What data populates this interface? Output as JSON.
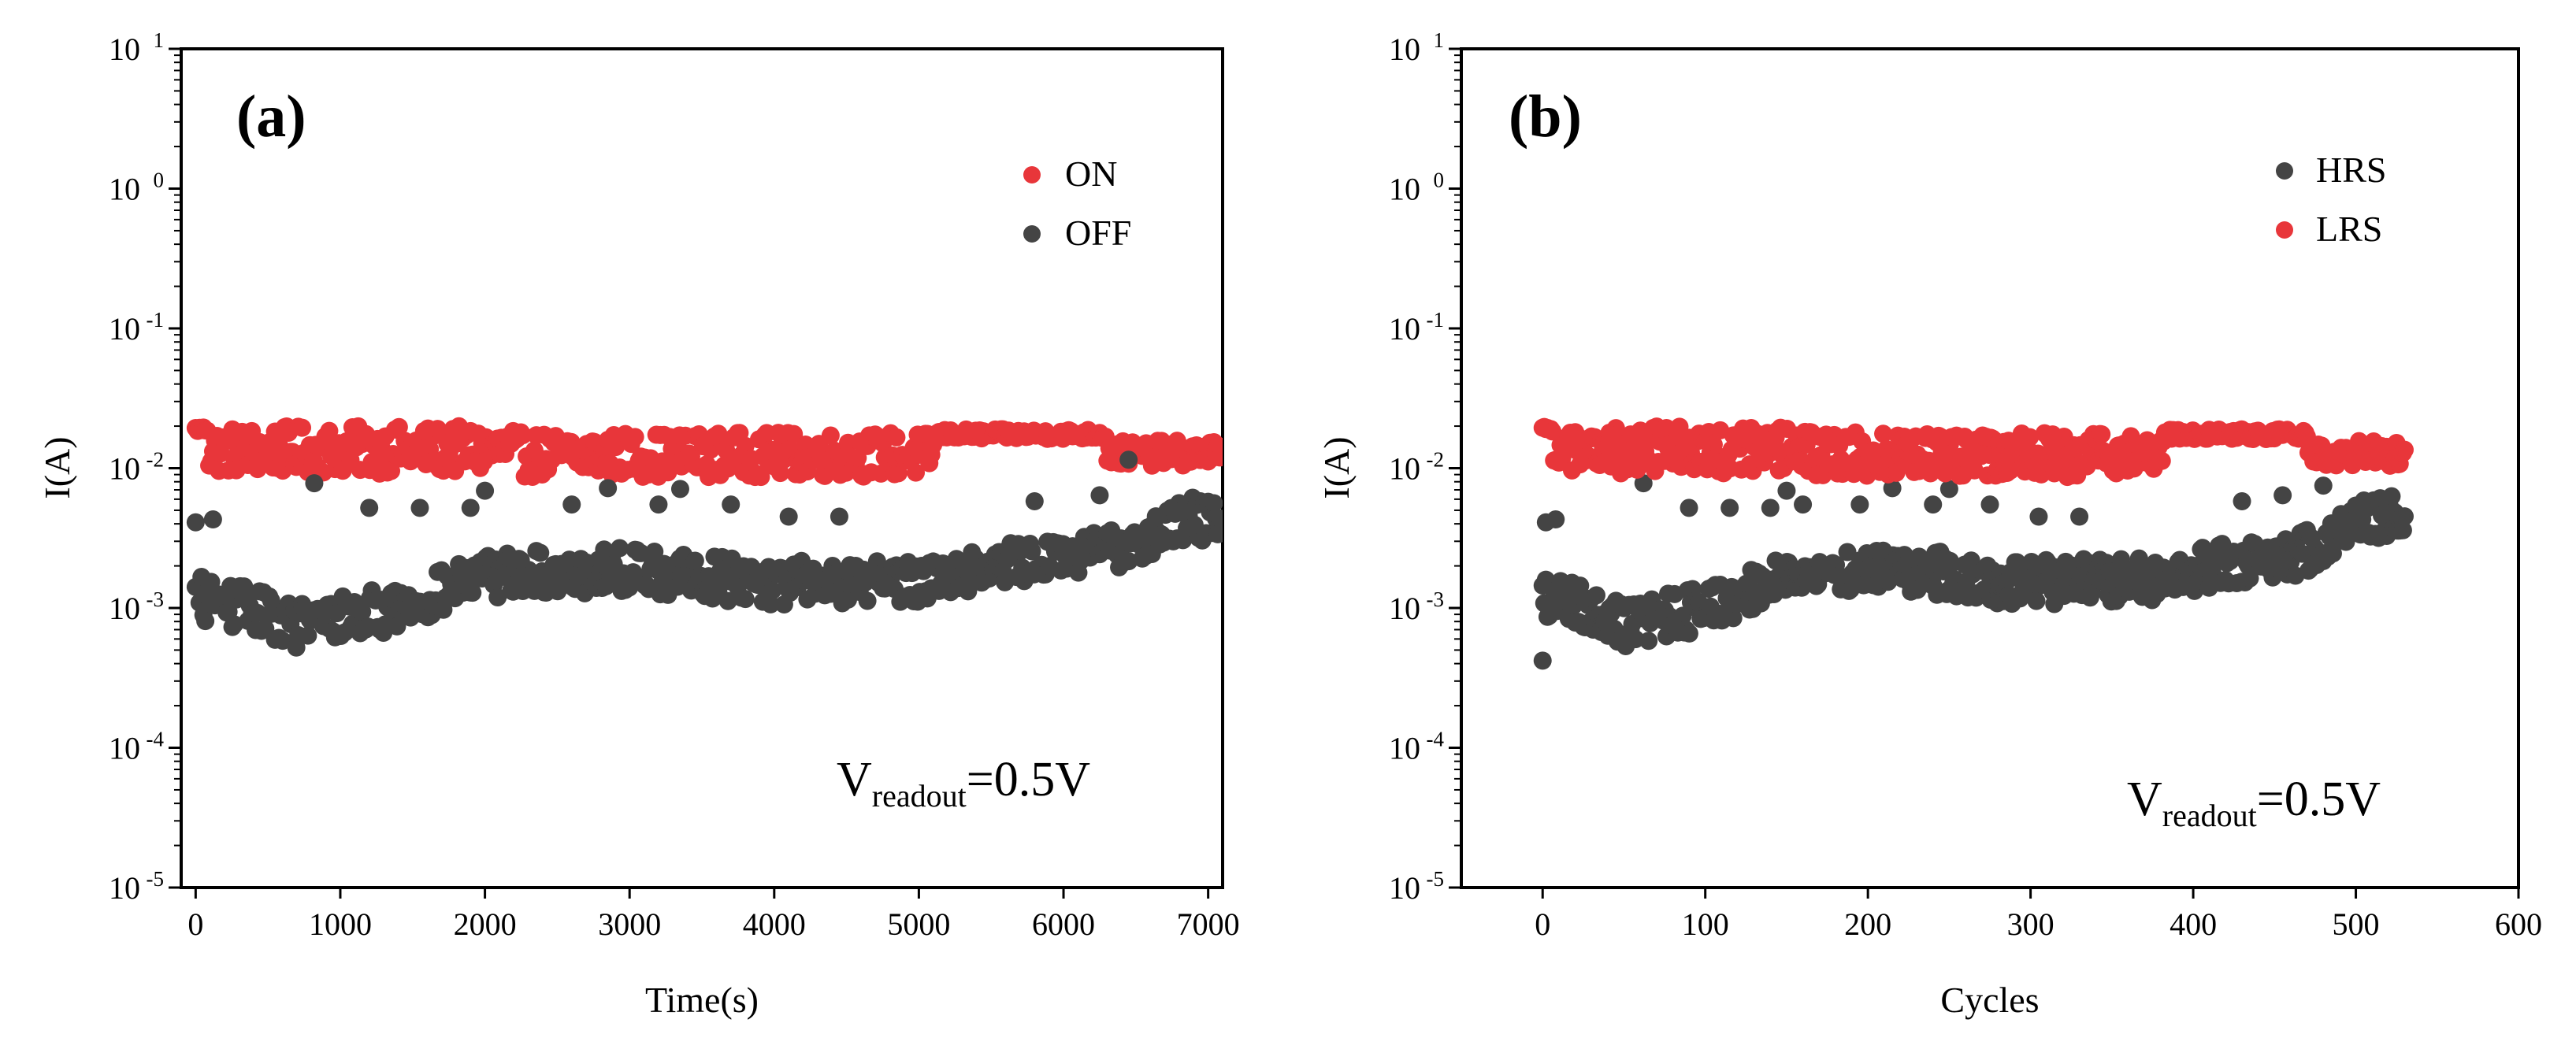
{
  "chart_data": [
    {
      "type": "scatter",
      "panel_label": "(a)",
      "xlabel": "Time(s)",
      "ylabel": "I(A)",
      "yscale": "log",
      "xlim": [
        -100,
        7100
      ],
      "ylim": [
        1e-05,
        10
      ],
      "x_ticks": [
        0,
        1000,
        2000,
        3000,
        4000,
        5000,
        6000,
        7000
      ],
      "x_tick_labels": [
        "0",
        "1000",
        "2000",
        "3000",
        "4000",
        "5000",
        "6000",
        "7000"
      ],
      "y_ticks": [
        1e-05,
        0.0001,
        0.001,
        0.01,
        0.1,
        1,
        10
      ],
      "y_tick_labels": [
        {
          "base": "10",
          "exp": "-5"
        },
        {
          "base": "10",
          "exp": "-4"
        },
        {
          "base": "10",
          "exp": "-3"
        },
        {
          "base": "10",
          "exp": "-2"
        },
        {
          "base": "10",
          "exp": "-1"
        },
        {
          "base": "10",
          "exp": "0"
        },
        {
          "base": "10",
          "exp": "1"
        }
      ],
      "annotation": {
        "main": "V",
        "sub": "readout",
        "rest": "=0.5V"
      },
      "legend_position": "top-right",
      "x_range": [
        0,
        7080
      ],
      "n_points": 530,
      "series": [
        {
          "name": "ON",
          "color": "#e8363a",
          "segments": [
            {
              "from": 0,
              "to": 2200,
              "median": 0.0135,
              "spread": 0.17,
              "start": 0.019
            },
            {
              "from": 2200,
              "to": 5100,
              "median": 0.0125,
              "spread": 0.16
            },
            {
              "from": 5100,
              "to": 6300,
              "median": 0.0175,
              "spread": 0.035
            },
            {
              "from": 6300,
              "to": 7080,
              "median": 0.0128,
              "spread": 0.09
            }
          ]
        },
        {
          "name": "OFF",
          "color": "#444444",
          "trend": [
            [
              0,
              0.0012
            ],
            [
              350,
              0.001
            ],
            [
              700,
              0.00075
            ],
            [
              1400,
              0.001
            ],
            [
              2000,
              0.0017
            ],
            [
              3000,
              0.0019
            ],
            [
              4000,
              0.0015
            ],
            [
              5000,
              0.0016
            ],
            [
              5500,
              0.002
            ],
            [
              6300,
              0.0025
            ],
            [
              6800,
              0.0042
            ],
            [
              7080,
              0.0045
            ]
          ],
          "spread": 0.16,
          "outliers": [
            [
              0,
              0.0041
            ],
            [
              120,
              0.0043
            ],
            [
              820,
              0.0078
            ],
            [
              1200,
              0.0052
            ],
            [
              1550,
              0.0052
            ],
            [
              1900,
              0.0052
            ],
            [
              2000,
              0.0069
            ],
            [
              2600,
              0.0055
            ],
            [
              2850,
              0.0072
            ],
            [
              3200,
              0.0055
            ],
            [
              3350,
              0.0071
            ],
            [
              3700,
              0.0055
            ],
            [
              4100,
              0.0045
            ],
            [
              4450,
              0.0045
            ],
            [
              5800,
              0.0058
            ],
            [
              6250,
              0.0064
            ],
            [
              6450,
              0.0115
            ]
          ]
        }
      ]
    },
    {
      "type": "scatter",
      "panel_label": "(b)",
      "xlabel": "Cycles",
      "ylabel": "I(A)",
      "yscale": "log",
      "xlim": [
        -50,
        600
      ],
      "ylim": [
        1e-05,
        10
      ],
      "x_ticks": [
        0,
        100,
        200,
        300,
        400,
        500,
        600
      ],
      "x_tick_labels": [
        "0",
        "100",
        "200",
        "300",
        "400",
        "500",
        "600"
      ],
      "y_ticks": [
        1e-05,
        0.0001,
        0.001,
        0.01,
        0.1,
        1,
        10
      ],
      "y_tick_labels": [
        {
          "base": "10",
          "exp": "-5"
        },
        {
          "base": "10",
          "exp": "-4"
        },
        {
          "base": "10",
          "exp": "-3"
        },
        {
          "base": "10",
          "exp": "-2"
        },
        {
          "base": "10",
          "exp": "-1"
        },
        {
          "base": "10",
          "exp": "0"
        },
        {
          "base": "10",
          "exp": "1"
        }
      ],
      "annotation": {
        "main": "V",
        "sub": "readout",
        "rest": "=0.5V"
      },
      "legend_position": "top-right",
      "x_range": [
        0,
        530
      ],
      "n_points": 530,
      "series": [
        {
          "name": "HRS",
          "color": "#444444",
          "trend": [
            [
              0,
              0.0012
            ],
            [
              25,
              0.001
            ],
            [
              50,
              0.00075
            ],
            [
              100,
              0.001
            ],
            [
              150,
              0.0017
            ],
            [
              220,
              0.0019
            ],
            [
              290,
              0.0015
            ],
            [
              370,
              0.0016
            ],
            [
              410,
              0.002
            ],
            [
              470,
              0.0025
            ],
            [
              500,
              0.0042
            ],
            [
              530,
              0.0045
            ]
          ],
          "spread": 0.16,
          "outliers": [
            [
              0,
              0.00042
            ],
            [
              2,
              0.0041
            ],
            [
              8,
              0.0043
            ],
            [
              62,
              0.0078
            ],
            [
              90,
              0.0052
            ],
            [
              115,
              0.0052
            ],
            [
              140,
              0.0052
            ],
            [
              150,
              0.0069
            ],
            [
              160,
              0.0055
            ],
            [
              195,
              0.0055
            ],
            [
              215,
              0.0072
            ],
            [
              240,
              0.0055
            ],
            [
              250,
              0.0071
            ],
            [
              275,
              0.0055
            ],
            [
              305,
              0.0045
            ],
            [
              330,
              0.0045
            ],
            [
              430,
              0.0058
            ],
            [
              455,
              0.0064
            ],
            [
              480,
              0.0075
            ]
          ]
        },
        {
          "name": "LRS",
          "color": "#e8363a",
          "segments": [
            {
              "from": 0,
              "to": 165,
              "median": 0.0135,
              "spread": 0.17,
              "start": 0.019
            },
            {
              "from": 165,
              "to": 382,
              "median": 0.0125,
              "spread": 0.16
            },
            {
              "from": 382,
              "to": 470,
              "median": 0.0175,
              "spread": 0.035
            },
            {
              "from": 470,
              "to": 530,
              "median": 0.0128,
              "spread": 0.09
            }
          ]
        }
      ]
    }
  ]
}
